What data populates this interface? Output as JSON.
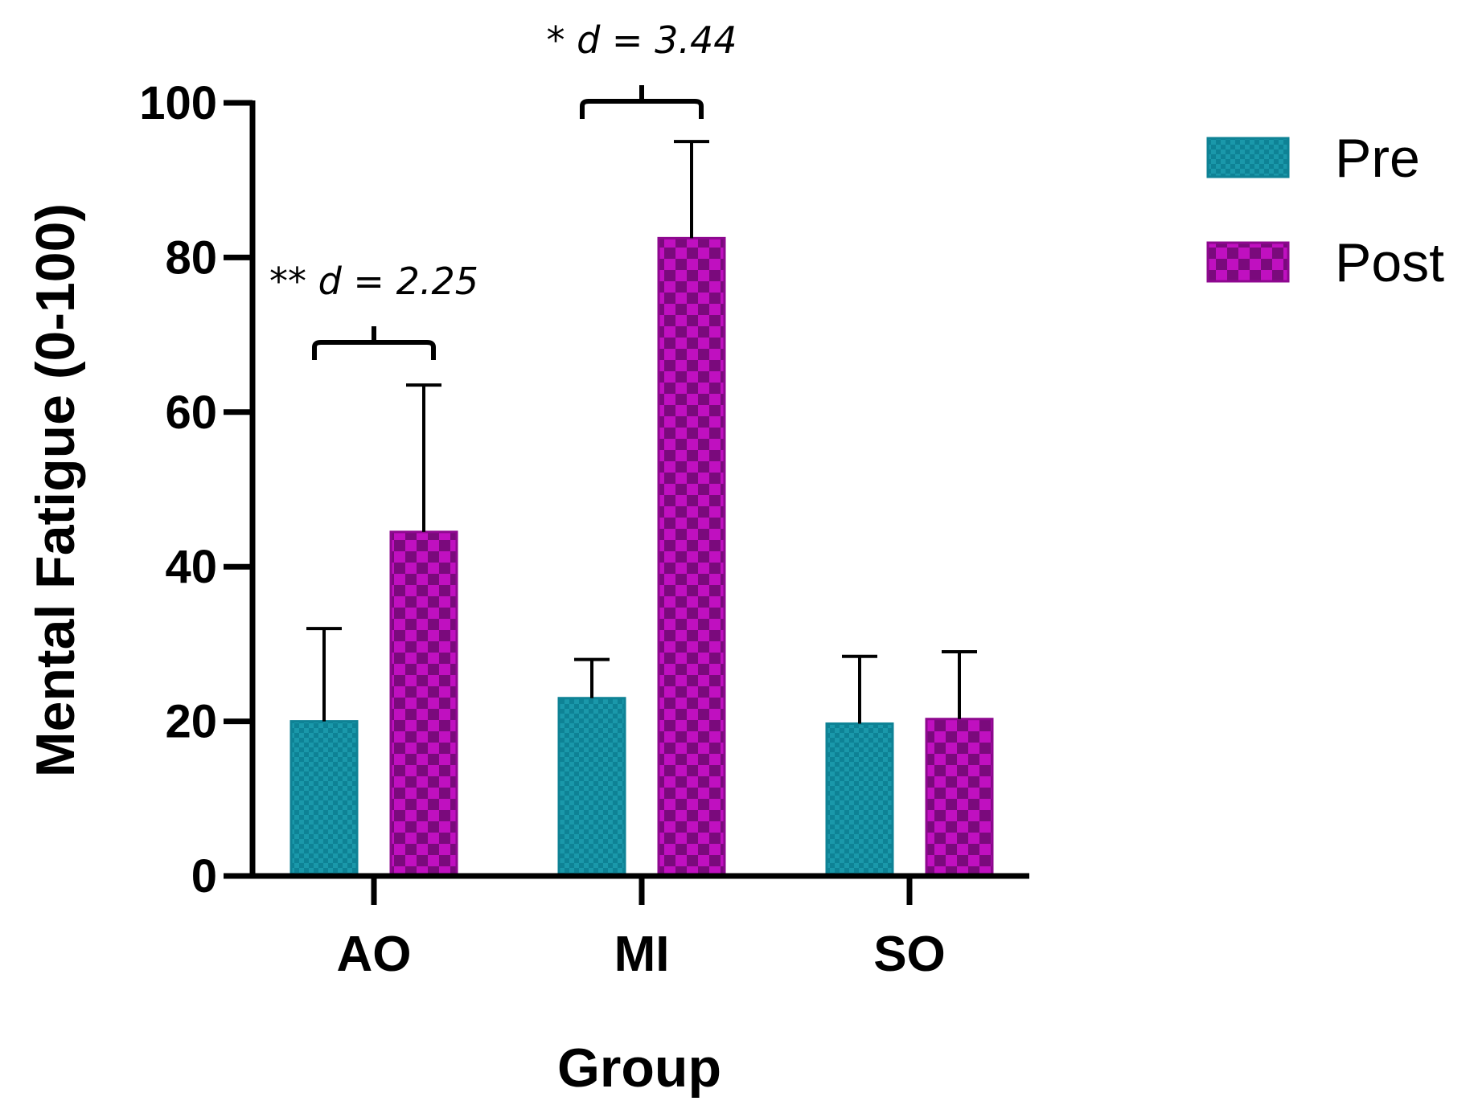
{
  "chart_data": {
    "type": "bar",
    "title": "",
    "xlabel": "Group",
    "ylabel": "Mental Fatigue (0-100)",
    "ylim": [
      0,
      100
    ],
    "yticks": [
      0,
      20,
      40,
      60,
      80,
      100
    ],
    "ytick_labels": [
      "0",
      "20",
      "40",
      "60",
      "80",
      "100"
    ],
    "categories": [
      "AO",
      "MI",
      "SO"
    ],
    "series": [
      {
        "name": "Pre",
        "color": "#0e8295",
        "values": [
          20,
          23,
          19.7
        ],
        "error": [
          12,
          5,
          8.7
        ]
      },
      {
        "name": "Post",
        "color": "#8e088f",
        "values": [
          44.5,
          82.5,
          20.3
        ],
        "error": [
          19,
          12.5,
          8.7
        ]
      }
    ],
    "annotations": [
      {
        "category": "AO",
        "stars": "**",
        "label": "d = 2.25"
      },
      {
        "category": "MI",
        "stars": "*",
        "label": "d = 3.44"
      }
    ],
    "legend": "top-right"
  }
}
